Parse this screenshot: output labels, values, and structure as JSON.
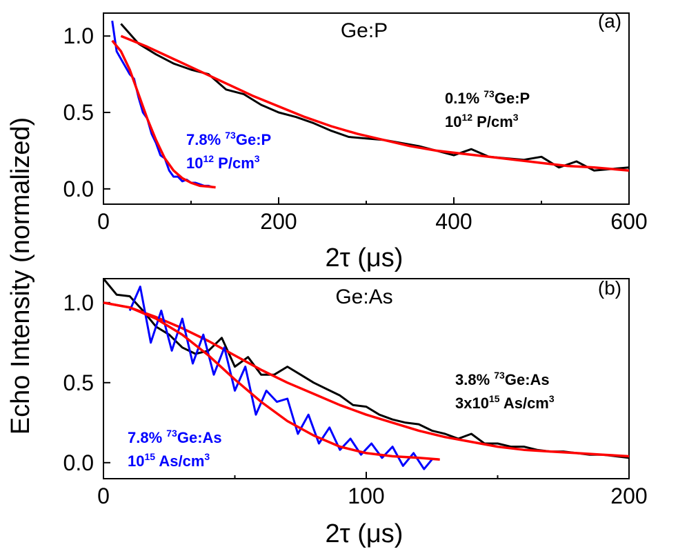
{
  "figure": {
    "ylabel": "Echo Intensity (normalized)"
  },
  "chart_data": [
    {
      "panel": "a",
      "type": "line",
      "title": "Ge:P",
      "panel_label": "(a)",
      "xlabel": "2τ (μs)",
      "xlim": [
        0,
        600
      ],
      "ylim": [
        -0.1,
        1.15
      ],
      "xticks": [
        0,
        200,
        400,
        600
      ],
      "yticks": [
        0.0,
        0.5,
        1.0
      ],
      "ytick_labels": [
        "0.0",
        "0.5",
        "1.0"
      ],
      "series": [
        {
          "name": "0.1% 73Ge:P data",
          "color": "#000000",
          "kind": "data",
          "x": [
            20,
            40,
            60,
            80,
            100,
            120,
            140,
            160,
            180,
            200,
            220,
            240,
            260,
            280,
            300,
            320,
            340,
            360,
            380,
            400,
            420,
            440,
            460,
            480,
            500,
            520,
            540,
            560,
            580,
            600
          ],
          "y": [
            1.08,
            0.95,
            0.88,
            0.82,
            0.78,
            0.75,
            0.65,
            0.62,
            0.55,
            0.5,
            0.47,
            0.43,
            0.38,
            0.34,
            0.33,
            0.32,
            0.3,
            0.28,
            0.25,
            0.22,
            0.26,
            0.21,
            0.2,
            0.19,
            0.21,
            0.14,
            0.18,
            0.12,
            0.13,
            0.14
          ]
        },
        {
          "name": "0.1% 73Ge:P fit",
          "color": "#ff0000",
          "kind": "fit",
          "x": [
            20,
            50,
            80,
            110,
            140,
            170,
            200,
            230,
            260,
            290,
            320,
            350,
            380,
            410,
            440,
            470,
            500,
            530,
            560,
            600
          ],
          "y": [
            1.0,
            0.93,
            0.85,
            0.77,
            0.69,
            0.61,
            0.54,
            0.47,
            0.41,
            0.36,
            0.32,
            0.28,
            0.25,
            0.23,
            0.21,
            0.19,
            0.17,
            0.15,
            0.14,
            0.12
          ]
        },
        {
          "name": "7.8% 73Ge:P data",
          "color": "#0000ff",
          "kind": "data",
          "x": [
            10,
            15,
            20,
            25,
            30,
            35,
            40,
            45,
            50,
            55,
            60,
            65,
            70,
            75,
            80,
            85,
            90,
            95,
            100,
            105,
            110,
            115,
            120,
            125
          ],
          "y": [
            1.1,
            0.9,
            0.85,
            0.8,
            0.75,
            0.72,
            0.6,
            0.5,
            0.46,
            0.36,
            0.3,
            0.22,
            0.2,
            0.12,
            0.08,
            0.08,
            0.05,
            0.06,
            0.04,
            0.04,
            0.03,
            0.02,
            0.02,
            0.01
          ]
        },
        {
          "name": "7.8% 73Ge:P fit",
          "color": "#ff0000",
          "kind": "fit",
          "x": [
            10,
            20,
            30,
            40,
            50,
            60,
            70,
            80,
            90,
            100,
            110,
            120,
            128
          ],
          "y": [
            0.97,
            0.9,
            0.78,
            0.62,
            0.46,
            0.32,
            0.2,
            0.12,
            0.07,
            0.04,
            0.02,
            0.015,
            0.01
          ]
        }
      ],
      "annotations": [
        {
          "color": "#000000",
          "line1": {
            "pre": "0.1% ",
            "sup": "73",
            "post": "Ge:P"
          },
          "line2": {
            "pre": "10",
            "sup": "12",
            "post": " P/cm",
            "sup2": "3"
          }
        },
        {
          "color": "#0000ff",
          "line1": {
            "pre": "7.8% ",
            "sup": "73",
            "post": "Ge:P"
          },
          "line2": {
            "pre": "10",
            "sup": "12",
            "post": " P/cm",
            "sup2": "3"
          }
        }
      ]
    },
    {
      "panel": "b",
      "type": "line",
      "title": "Ge:As",
      "panel_label": "(b)",
      "xlabel": "2τ (μs)",
      "xlim": [
        0,
        200
      ],
      "ylim": [
        -0.1,
        1.15
      ],
      "xticks": [
        0,
        100,
        200
      ],
      "yticks": [
        0.0,
        0.5,
        1.0
      ],
      "ytick_labels": [
        "0.0",
        "0.5",
        "1.0"
      ],
      "series": [
        {
          "name": "3.8% 73Ge:As data",
          "color": "#000000",
          "kind": "data",
          "x": [
            0,
            5,
            10,
            15,
            20,
            25,
            30,
            35,
            40,
            45,
            50,
            55,
            60,
            65,
            70,
            75,
            80,
            85,
            90,
            95,
            100,
            105,
            110,
            115,
            120,
            125,
            130,
            135,
            140,
            145,
            150,
            155,
            160,
            165,
            170,
            175,
            180,
            185,
            190,
            195,
            200
          ],
          "y": [
            1.15,
            1.05,
            1.04,
            0.95,
            0.85,
            0.8,
            0.72,
            0.68,
            0.7,
            0.78,
            0.6,
            0.66,
            0.55,
            0.55,
            0.6,
            0.55,
            0.5,
            0.46,
            0.42,
            0.36,
            0.35,
            0.3,
            0.27,
            0.25,
            0.24,
            0.2,
            0.18,
            0.15,
            0.18,
            0.12,
            0.12,
            0.1,
            0.1,
            0.08,
            0.07,
            0.07,
            0.06,
            0.05,
            0.05,
            0.04,
            0.03
          ]
        },
        {
          "name": "3.8% 73Ge:As fit",
          "color": "#ff0000",
          "kind": "fit",
          "x": [
            0,
            10,
            20,
            30,
            40,
            50,
            60,
            70,
            80,
            90,
            100,
            110,
            120,
            130,
            140,
            150,
            160,
            170,
            180,
            190,
            200
          ],
          "y": [
            1.0,
            0.97,
            0.91,
            0.84,
            0.76,
            0.67,
            0.58,
            0.5,
            0.43,
            0.36,
            0.3,
            0.25,
            0.2,
            0.16,
            0.13,
            0.1,
            0.08,
            0.07,
            0.06,
            0.05,
            0.04
          ]
        },
        {
          "name": "7.8% 73Ge:As data",
          "color": "#0000ff",
          "kind": "data",
          "x": [
            10,
            14,
            18,
            22,
            26,
            30,
            34,
            38,
            42,
            46,
            50,
            54,
            58,
            62,
            66,
            70,
            74,
            78,
            82,
            86,
            90,
            94,
            98,
            102,
            106,
            110,
            114,
            118,
            122,
            125
          ],
          "y": [
            0.95,
            1.1,
            0.75,
            0.95,
            0.7,
            0.9,
            0.62,
            0.8,
            0.55,
            0.72,
            0.45,
            0.6,
            0.3,
            0.45,
            0.38,
            0.4,
            0.18,
            0.3,
            0.12,
            0.22,
            0.08,
            0.15,
            0.05,
            0.12,
            0.03,
            0.1,
            -0.02,
            0.06,
            -0.04,
            0.02
          ]
        },
        {
          "name": "7.8% 73Ge:As fit",
          "color": "#ff0000",
          "kind": "fit",
          "x": [
            0,
            10,
            20,
            30,
            40,
            50,
            60,
            70,
            80,
            90,
            100,
            110,
            120,
            128
          ],
          "y": [
            1.0,
            0.97,
            0.9,
            0.8,
            0.67,
            0.52,
            0.38,
            0.26,
            0.17,
            0.1,
            0.06,
            0.04,
            0.03,
            0.02
          ]
        }
      ],
      "annotations": [
        {
          "color": "#000000",
          "line1": {
            "pre": "3.8% ",
            "sup": "73",
            "post": "Ge:As"
          },
          "line2": {
            "pre": "3x10",
            "sup": "15",
            "post": " As/cm",
            "sup2": "3"
          }
        },
        {
          "color": "#0000ff",
          "line1": {
            "pre": "7.8% ",
            "sup": "73",
            "post": "Ge:As"
          },
          "line2": {
            "pre": "10",
            "sup": "15",
            "post": " As/cm",
            "sup2": "3"
          }
        }
      ]
    }
  ]
}
